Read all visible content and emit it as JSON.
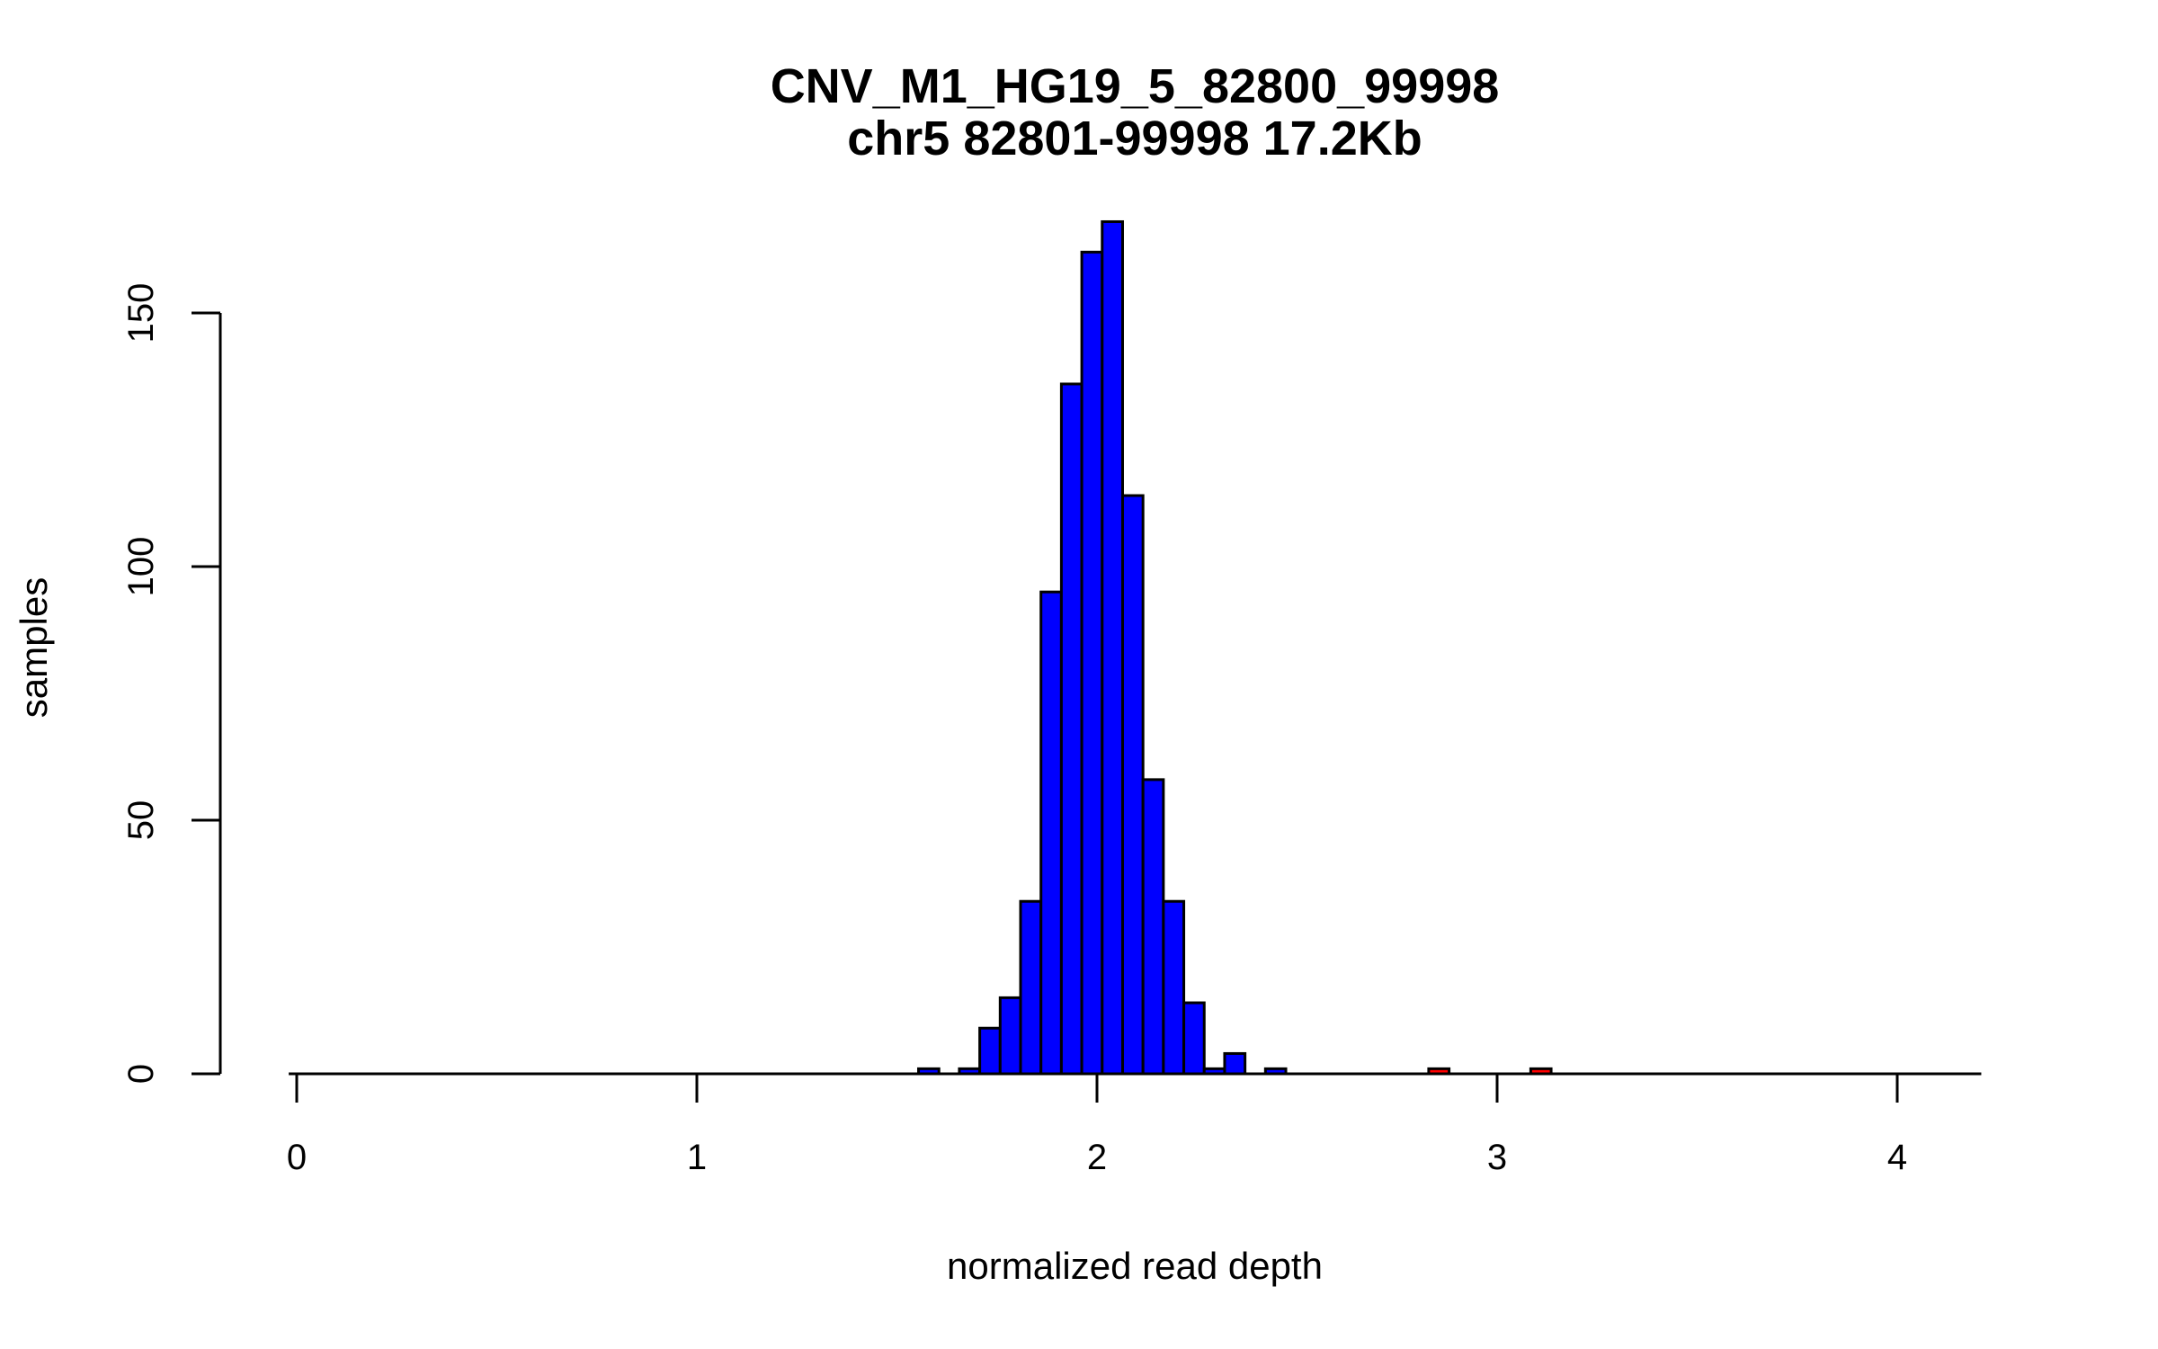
{
  "chart_data": {
    "type": "bar",
    "subtype": "histogram",
    "title": "CNV_M1_HG19_5_82800_99998",
    "subtitle": "chr5 82801-99998 17.2Kb",
    "xlabel": "normalized read depth",
    "ylabel": "samples",
    "xlim": [
      0,
      4.2
    ],
    "ylim": [
      0,
      170
    ],
    "xticks": [
      0,
      1,
      2,
      3,
      4
    ],
    "xtick_labels": [
      "0",
      "1",
      "2",
      "3",
      "4"
    ],
    "yticks": [
      0,
      50,
      100,
      150
    ],
    "ytick_labels": [
      "0",
      "50",
      "100",
      "150"
    ],
    "grid": false,
    "colors": {
      "normal": "#0000ff",
      "outlier": "#ff0000",
      "edge": "#000000"
    },
    "bins": [
      {
        "x0": 1.554,
        "x1": 1.605,
        "count": 1,
        "group": "normal"
      },
      {
        "x0": 1.656,
        "x1": 1.707,
        "count": 1,
        "group": "normal"
      },
      {
        "x0": 1.707,
        "x1": 1.758,
        "count": 9,
        "group": "normal"
      },
      {
        "x0": 1.758,
        "x1": 1.809,
        "count": 15,
        "group": "normal"
      },
      {
        "x0": 1.809,
        "x1": 1.86,
        "count": 34,
        "group": "normal"
      },
      {
        "x0": 1.86,
        "x1": 1.911,
        "count": 95,
        "group": "normal"
      },
      {
        "x0": 1.911,
        "x1": 1.962,
        "count": 136,
        "group": "normal"
      },
      {
        "x0": 1.962,
        "x1": 2.013,
        "count": 162,
        "group": "normal"
      },
      {
        "x0": 2.013,
        "x1": 2.064,
        "count": 168,
        "group": "normal"
      },
      {
        "x0": 2.064,
        "x1": 2.115,
        "count": 114,
        "group": "normal"
      },
      {
        "x0": 2.115,
        "x1": 2.166,
        "count": 58,
        "group": "normal"
      },
      {
        "x0": 2.166,
        "x1": 2.217,
        "count": 34,
        "group": "normal"
      },
      {
        "x0": 2.217,
        "x1": 2.268,
        "count": 14,
        "group": "normal"
      },
      {
        "x0": 2.268,
        "x1": 2.319,
        "count": 1,
        "group": "normal"
      },
      {
        "x0": 2.319,
        "x1": 2.37,
        "count": 4,
        "group": "normal"
      },
      {
        "x0": 2.421,
        "x1": 2.472,
        "count": 1,
        "group": "normal"
      },
      {
        "x0": 2.829,
        "x1": 2.88,
        "count": 1,
        "group": "outlier"
      },
      {
        "x0": 3.084,
        "x1": 3.135,
        "count": 1,
        "group": "outlier"
      }
    ],
    "baseline_range": [
      -0.02,
      4.21
    ]
  }
}
